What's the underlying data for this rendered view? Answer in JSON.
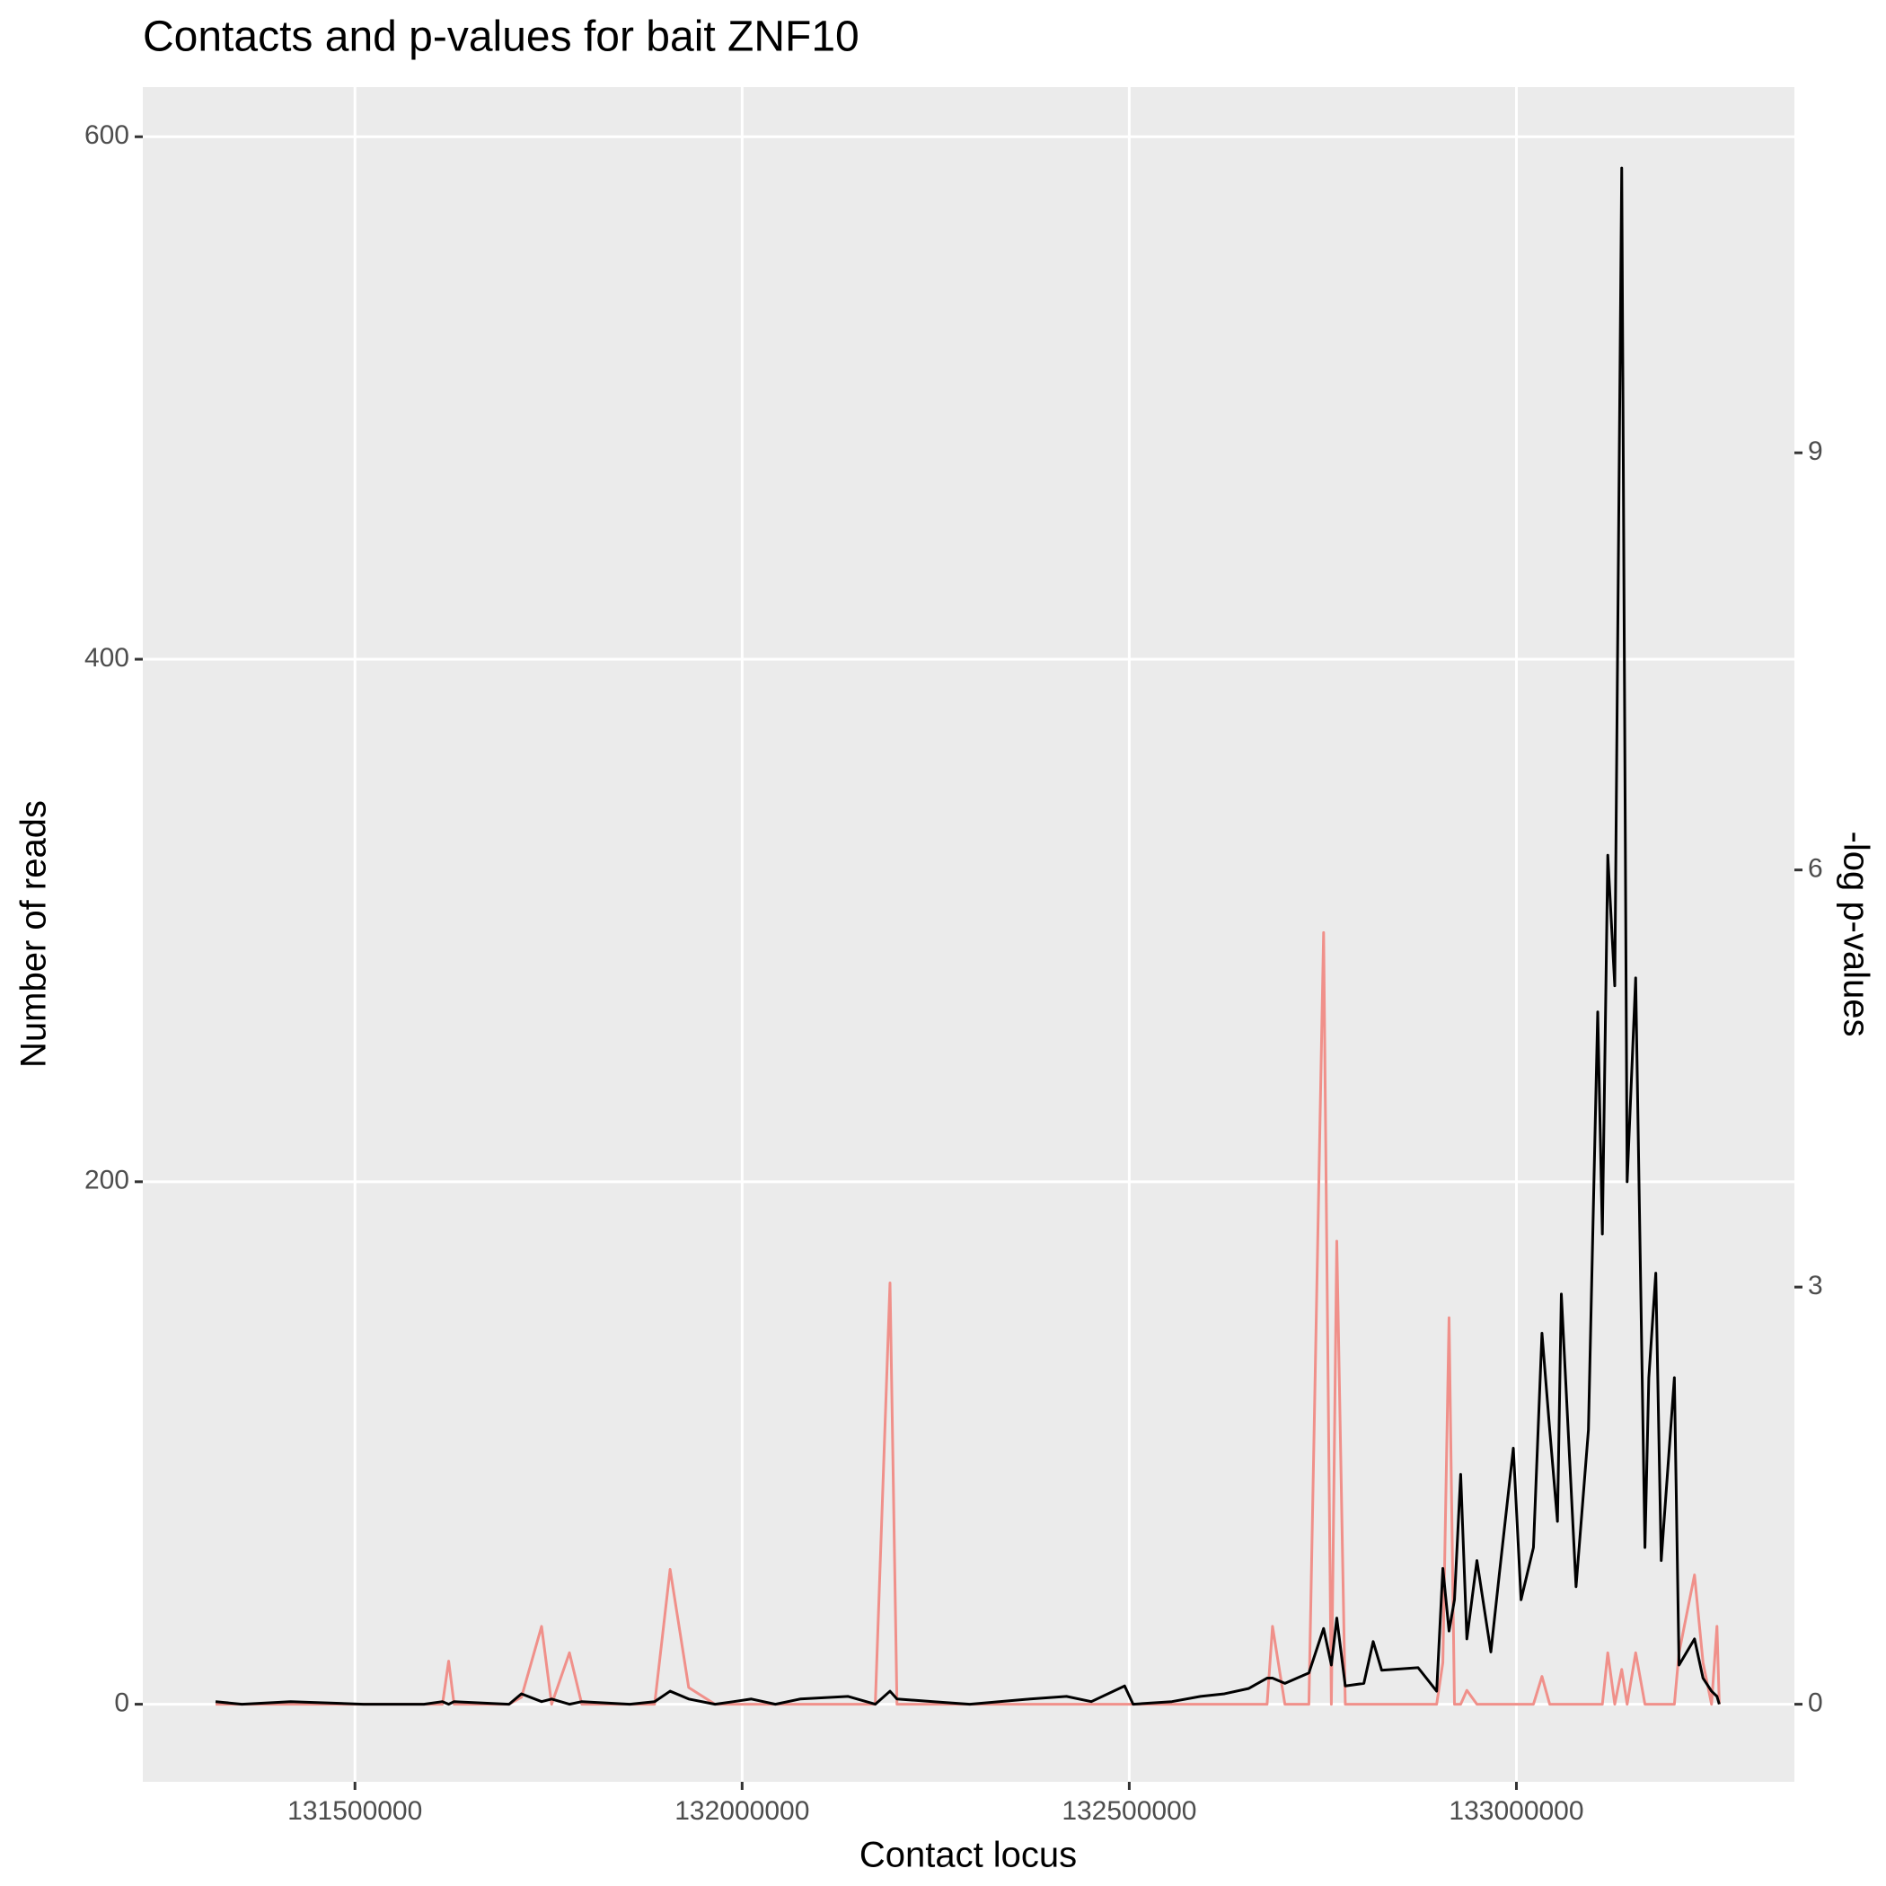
{
  "chart_data": {
    "type": "line",
    "title": "Contacts and p-values for bait ZNF10",
    "x_label": "Contact locus",
    "y_label": "Number of reads",
    "y2_label": "-log p-values",
    "x": [
      131320000,
      131354000,
      131417000,
      131511000,
      131589000,
      131613000,
      131621000,
      131628000,
      131699000,
      131715000,
      131741000,
      131754000,
      131777000,
      131793000,
      131855000,
      131887000,
      131907000,
      131931000,
      131965000,
      131989000,
      132012000,
      132043000,
      132075000,
      132137000,
      132172000,
      132191000,
      132200000,
      132247000,
      132294000,
      132372000,
      132419000,
      132451000,
      132494000,
      132505000,
      132555000,
      132592000,
      132623000,
      132654000,
      132678000,
      132685000,
      132701000,
      132732000,
      132751000,
      132761000,
      132768000,
      132779000,
      132803000,
      132815000,
      132826000,
      132873000,
      132897000,
      132905000,
      132913000,
      132920000,
      132928000,
      132936000,
      132949000,
      132967000,
      132978000,
      132996000,
      133006000,
      133022000,
      133033000,
      133043000,
      133053000,
      133058000,
      133077000,
      133093000,
      133105000,
      133111000,
      133118000,
      133127000,
      133136000,
      133143000,
      133154000,
      133166000,
      133171000,
      133180000,
      133187000,
      133204000,
      133210000,
      133230000,
      133241000,
      133252000,
      133259000,
      133262000
    ],
    "series": [
      {
        "color": "#000000",
        "values": [
          1,
          0,
          1,
          0,
          0,
          1,
          0,
          1,
          0,
          4,
          1,
          2,
          0,
          1,
          0,
          1,
          5,
          2,
          0,
          1,
          2,
          0,
          2,
          3,
          0,
          5,
          2,
          1,
          0,
          2,
          3,
          1,
          7,
          0,
          1,
          3,
          4,
          6,
          10,
          10,
          8,
          12,
          29,
          15,
          33,
          7,
          8,
          24,
          13,
          14,
          5,
          52,
          28,
          40,
          88,
          25,
          55,
          20,
          50,
          98,
          40,
          60,
          142,
          105,
          70,
          157,
          45,
          105,
          265,
          180,
          325,
          275,
          588,
          200,
          278,
          60,
          125,
          165,
          55,
          125,
          15,
          25,
          10,
          5,
          3,
          0
        ]
      },
      {
        "color": "#F0908A",
        "axis": "y2",
        "values": [
          0,
          0,
          0,
          0,
          0,
          0,
          0.31,
          0,
          0,
          0.05,
          0.56,
          0,
          0.37,
          0,
          0,
          0,
          0.97,
          0.12,
          0,
          0,
          0,
          0,
          0,
          0,
          0,
          3.03,
          0,
          0,
          0,
          0,
          0,
          0,
          0,
          0,
          0,
          0,
          0,
          0,
          0,
          0.56,
          0,
          0,
          5.55,
          0,
          3.33,
          0,
          0,
          0,
          0,
          0,
          0,
          0.3,
          2.78,
          0,
          0,
          0.1,
          0,
          0,
          0,
          0,
          0,
          0,
          0.2,
          0,
          0,
          0,
          0,
          0,
          0,
          0,
          0.37,
          0,
          0.25,
          0,
          0.37,
          0,
          0,
          0,
          0,
          0,
          0.37,
          0.93,
          0.3,
          0,
          0.56,
          0
        ]
      }
    ],
    "xlim": [
      131226000,
      133359000
    ],
    "xticks": [
      131500000,
      132000000,
      132500000,
      133000000
    ],
    "ylim": [
      -29.7,
      619
    ],
    "yticks": [
      0,
      200,
      400,
      600
    ],
    "y2lim": [
      -0.558,
      11.63
    ],
    "y2ticks": [
      0,
      3,
      6,
      9
    ],
    "grid": true
  }
}
